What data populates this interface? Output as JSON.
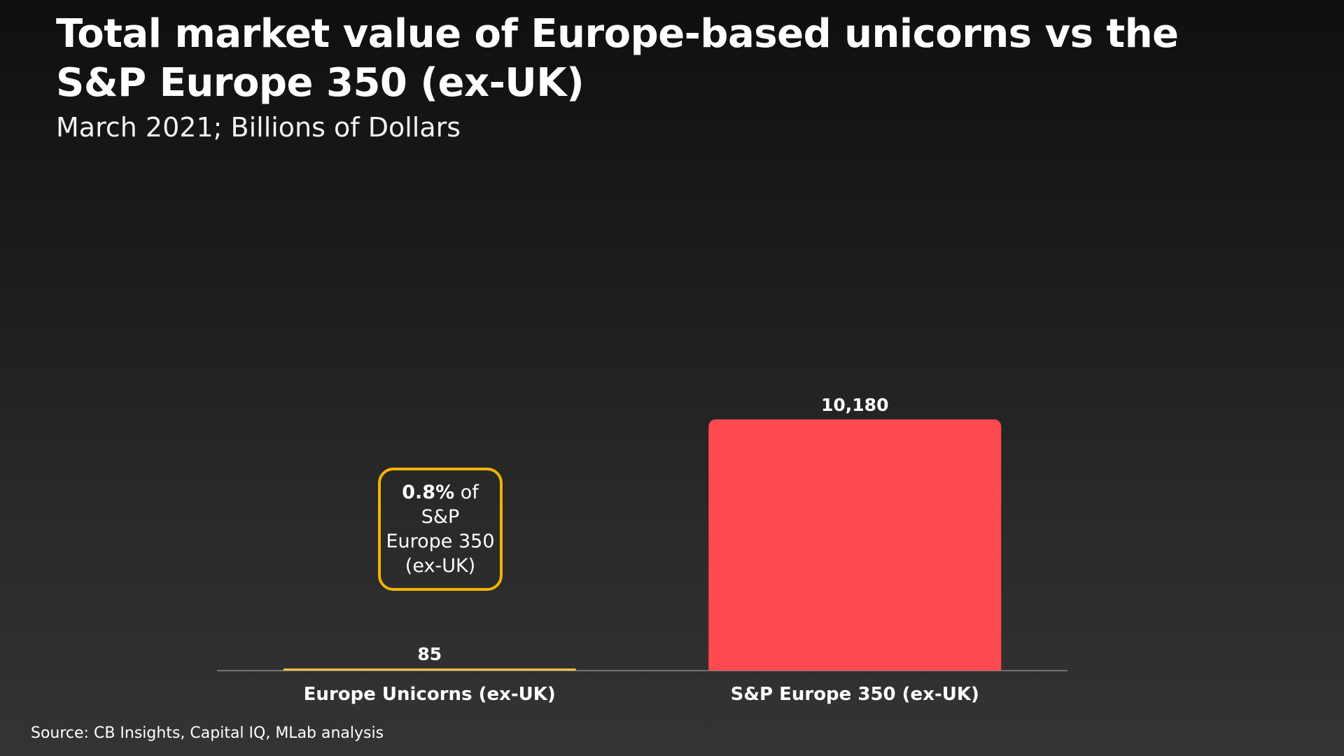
{
  "header": {
    "title": "Total market value of Europe-based unicorns vs the S&P Europe 350 (ex-UK)",
    "subtitle": "March 2021; Billions of Dollars"
  },
  "callout": {
    "highlight": "0.8%",
    "text_line1_rest": " of S&P",
    "text_line2": "Europe 350",
    "text_line3": "(ex-UK)"
  },
  "footer": {
    "source": "Source: CB Insights, Capital IQ, MLab analysis"
  },
  "colors": {
    "bar_unicorns": "#f0c040",
    "bar_sp": "#ff4a4f",
    "callout_border": "#f0b400",
    "axis": "#8a8a8a"
  },
  "chart_data": {
    "type": "bar",
    "title": "Total market value of Europe-based unicorns vs the S&P Europe 350 (ex-UK)",
    "subtitle": "March 2021; Billions of Dollars",
    "categories": [
      "Europe Unicorns (ex-UK)",
      "S&P Europe 350 (ex-UK)"
    ],
    "values": [
      85,
      10180
    ],
    "data_labels": [
      "85",
      "10,180"
    ],
    "ylim": [
      0,
      20000
    ],
    "grid": false,
    "legend": "none",
    "xlabel": "",
    "ylabel": ""
  }
}
